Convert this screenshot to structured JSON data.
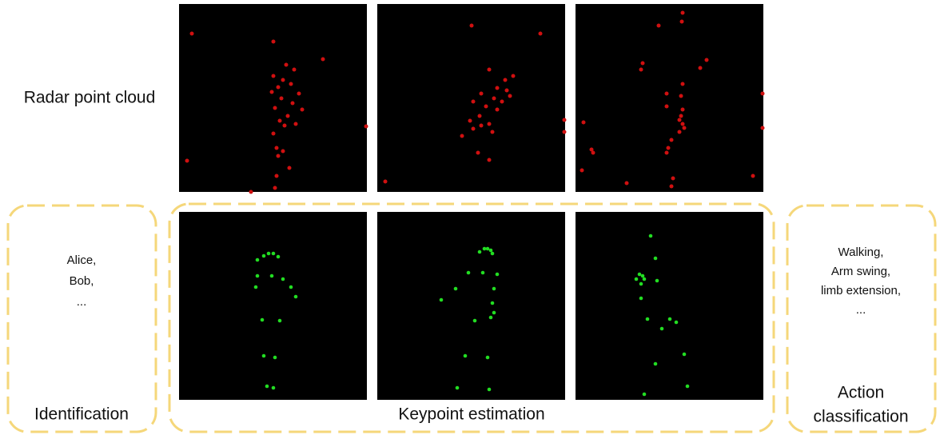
{
  "row_label": "Radar point cloud",
  "identification": {
    "names": [
      "Alice,",
      "Bob,",
      "..."
    ],
    "label": "Identification"
  },
  "keypoint_estimation": {
    "label": "Keypoint estimation"
  },
  "action_classification": {
    "actions": [
      "Walking,",
      "Arm swing,",
      "limb extension,",
      "..."
    ],
    "label": [
      "Action",
      "classification"
    ]
  }
}
